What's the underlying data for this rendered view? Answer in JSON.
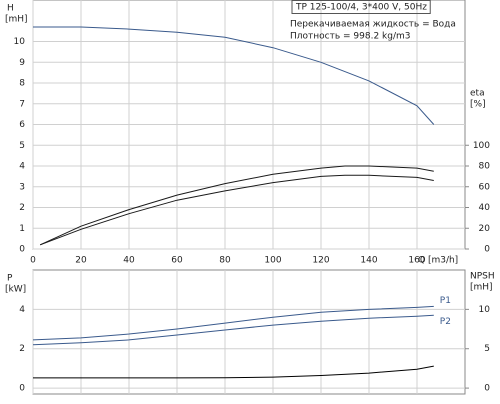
{
  "chart_data": [
    {
      "type": "line",
      "annotations": [
        "TP 125-100/4, 3*400 V, 50Hz",
        "Перекачиваемая жидкость = Вода",
        "Плотность = 998.2 kg/m3"
      ],
      "ylabel": "H",
      "yunit": "[mH]",
      "y2label": "eta",
      "y2unit": "[%]",
      "xlabel": "Q [m3/h]",
      "xlim": [
        0,
        180
      ],
      "xticks": [
        0,
        20,
        40,
        60,
        80,
        100,
        120,
        140,
        160
      ],
      "ylim": [
        0,
        12
      ],
      "yticks": [
        0,
        1,
        2,
        3,
        4,
        5,
        6,
        7,
        8,
        9,
        10
      ],
      "y2lim": [
        0,
        240
      ],
      "y2ticks": [
        0,
        20,
        40,
        60,
        80,
        100
      ],
      "grid": true,
      "series": [
        {
          "color": "#3a5a8c",
          "x": [
            0,
            20,
            40,
            60,
            80,
            100,
            120,
            140,
            160,
            167
          ],
          "values": [
            10.7,
            10.7,
            10.6,
            10.45,
            10.2,
            9.7,
            9.0,
            8.1,
            6.9,
            6.0
          ]
        },
        {
          "color": "#1a1a1a",
          "axis": "y2",
          "x": [
            3,
            20,
            40,
            60,
            80,
            100,
            120,
            130,
            140,
            160,
            167
          ],
          "values": [
            4,
            22,
            38,
            52,
            63,
            72,
            78,
            80,
            80,
            78,
            75
          ]
        },
        {
          "color": "#1a1a1a",
          "axis": "y2",
          "x": [
            3,
            20,
            40,
            60,
            80,
            100,
            120,
            130,
            140,
            160,
            167
          ],
          "values": [
            4,
            19,
            34,
            47,
            56,
            64,
            70,
            71,
            71,
            69,
            66
          ]
        }
      ]
    },
    {
      "type": "line",
      "ylabel": "P",
      "yunit": "[kW]",
      "y2label": "NPSH",
      "y2unit": "[mH]",
      "xlim": [
        0,
        180
      ],
      "xticks": [
        0,
        20,
        40,
        60,
        80,
        100,
        120,
        140,
        160
      ],
      "ylim": [
        -0.3,
        6
      ],
      "yticks": [
        0,
        2,
        4
      ],
      "y2lim": [
        -0.75,
        15
      ],
      "y2ticks": [
        0,
        5,
        10
      ],
      "grid": true,
      "series": [
        {
          "name": "P1",
          "color": "#3a5a8c",
          "x": [
            0,
            20,
            40,
            60,
            80,
            100,
            120,
            140,
            160,
            167
          ],
          "values": [
            2.45,
            2.55,
            2.75,
            3.0,
            3.3,
            3.6,
            3.85,
            4.0,
            4.1,
            4.15
          ]
        },
        {
          "name": "P2",
          "color": "#3a5a8c",
          "x": [
            0,
            20,
            40,
            60,
            80,
            100,
            120,
            140,
            160,
            167
          ],
          "values": [
            2.2,
            2.3,
            2.45,
            2.7,
            2.95,
            3.2,
            3.4,
            3.55,
            3.65,
            3.7
          ]
        },
        {
          "color": "#000000",
          "axis": "y2",
          "x": [
            0,
            20,
            40,
            60,
            80,
            100,
            120,
            140,
            160,
            167
          ],
          "values": [
            1.3,
            1.3,
            1.3,
            1.3,
            1.32,
            1.4,
            1.6,
            1.9,
            2.4,
            2.8
          ]
        }
      ]
    }
  ]
}
